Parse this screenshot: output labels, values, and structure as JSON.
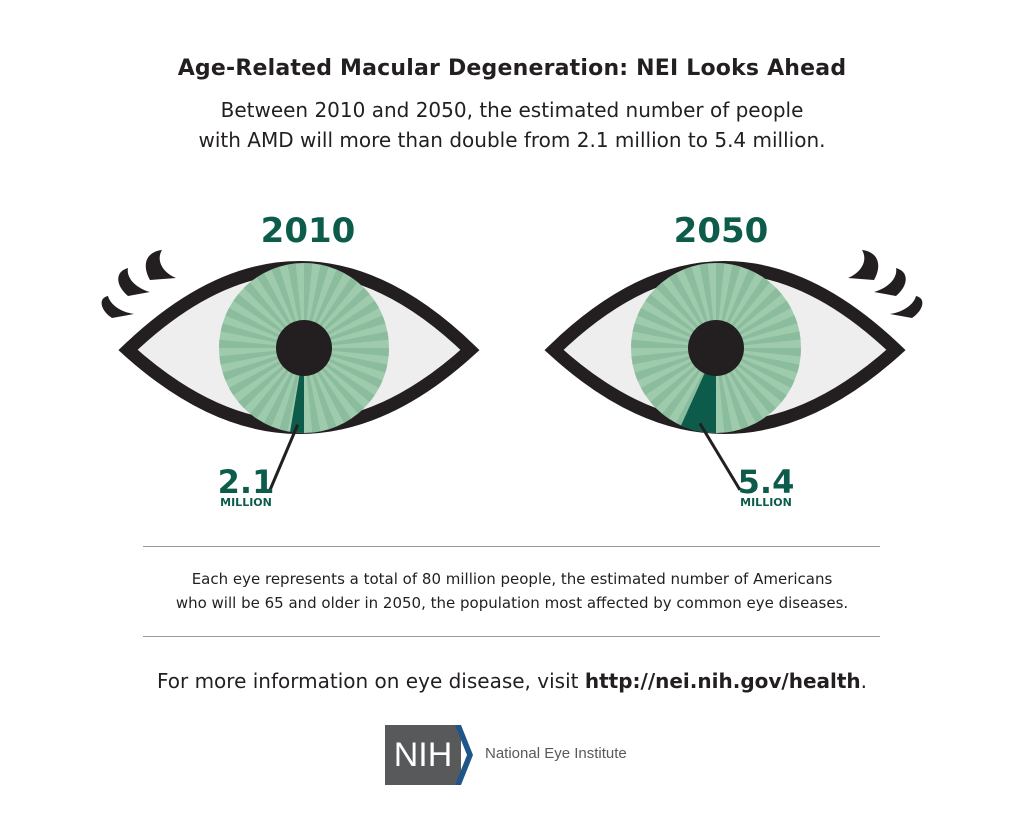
{
  "title": "Age-Related Macular Degeneration: NEI Looks Ahead",
  "subtitle_line1": "Between 2010 and 2050, the estimated number of people",
  "subtitle_line2": "with AMD will more than double from 2.1 million to 5.4 million.",
  "note_line1": "Each eye represents a total of 80 million people, the estimated number of Americans",
  "note_line2": "who will be 65 and older in 2050, the population most affected by common eye diseases.",
  "more_info_prefix": "For more information on eye disease, visit ",
  "more_info_url": "http://nei.nih.gov/health",
  "more_info_suffix": ".",
  "logo": {
    "letters": "NIH",
    "org_name": "National Eye Institute"
  },
  "colors": {
    "dark_green": "#0d5c4b",
    "iris_light": "#a8d2b4",
    "iris_dark": "#78b08f",
    "eye_outline": "#231f20",
    "sclera": "#eeeeee",
    "nih_gray": "#58595b",
    "nih_blue": "#20558a"
  },
  "chart_data": {
    "type": "pie",
    "total_per_eye": 80,
    "unit": "million",
    "eyes": [
      {
        "year": "2010",
        "value": 2.1,
        "value_label": "2.1",
        "unit_label": "MILLION"
      },
      {
        "year": "2050",
        "value": 5.4,
        "value_label": "5.4",
        "unit_label": "MILLION"
      }
    ]
  }
}
